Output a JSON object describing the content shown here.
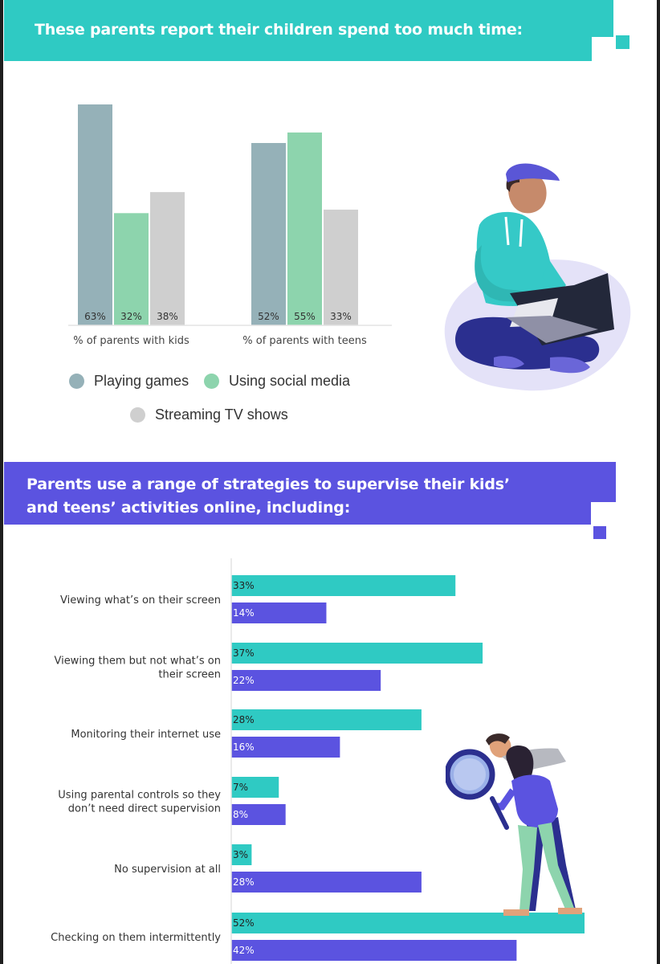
{
  "section1": {
    "title": "These parents report their children spend too much time:"
  },
  "section2": {
    "title": "Parents use a range of strategies to supervise their kids’ and teens’ activities online, including:"
  },
  "colors": {
    "teal": "#2fcac3",
    "purple": "#5b53e0",
    "games": "#95b1b8",
    "social": "#8dd4ad",
    "streaming": "#cfcfcf"
  },
  "chart_data": [
    {
      "type": "bar",
      "categories": [
        "% of parents with kids",
        "% of parents with teens"
      ],
      "series": [
        {
          "name": "Playing games",
          "values": [
            63,
            52
          ],
          "labels": [
            "63%",
            "52%"
          ]
        },
        {
          "name": "Using social media",
          "values": [
            32,
            55
          ],
          "labels": [
            "32%",
            "55%"
          ]
        },
        {
          "name": "Streaming TV shows",
          "values": [
            38,
            33
          ],
          "labels": [
            "38%",
            "33%"
          ]
        }
      ],
      "ylim": [
        0,
        63
      ],
      "grid": false,
      "legend": "bottom"
    },
    {
      "type": "bar",
      "orientation": "horizontal",
      "categories": [
        [
          "Viewing what’s on their screen"
        ],
        [
          "Viewing them but not what’s on",
          "their screen"
        ],
        [
          "Monitoring their internet use"
        ],
        [
          "Using parental controls so they",
          "don’t need direct supervision"
        ],
        [
          "No supervision at all"
        ],
        [
          "Checking on them intermittently"
        ]
      ],
      "series": [
        {
          "values": [
            33,
            37,
            28,
            7,
            3,
            52
          ],
          "labels": [
            "33%",
            "37%",
            "28%",
            "7%",
            "3%",
            "52%"
          ]
        },
        {
          "values": [
            14,
            22,
            16,
            8,
            28,
            42
          ],
          "labels": [
            "14%",
            "22%",
            "16%",
            "8%",
            "28%",
            "42%"
          ]
        }
      ],
      "xlim": [
        0,
        52
      ]
    }
  ]
}
